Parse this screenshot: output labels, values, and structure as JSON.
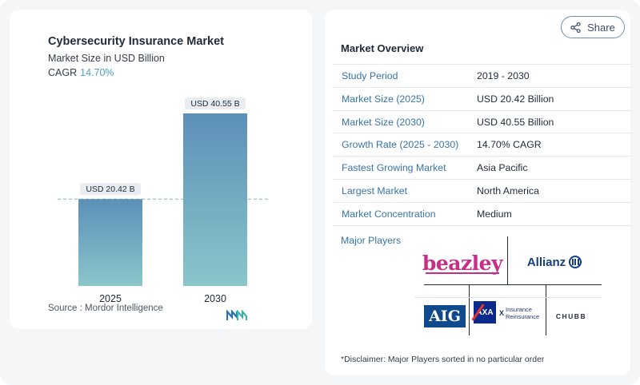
{
  "chart_data": {
    "type": "bar",
    "title": "Cybersecurity Insurance Market",
    "subtitle": "Market Size in USD Billion",
    "cagr_label": "CAGR",
    "cagr_value": "14.70%",
    "categories": [
      "2025",
      "2030"
    ],
    "values": [
      20.42,
      40.55
    ],
    "value_labels": [
      "USD 20.42 B",
      "USD 40.55 B"
    ],
    "ylim": [
      0,
      40.55
    ],
    "grid": false,
    "reference_line_at": 20.42,
    "bar_colors": [
      "#5d8fb7",
      "#8ac6cb"
    ],
    "source": "Source :  Mordor Intelligence"
  },
  "share": {
    "label": "Share"
  },
  "overview": {
    "title": "Market Overview",
    "rows": [
      {
        "key": "Study Period",
        "value": "2019 - 2030"
      },
      {
        "key": "Market Size (2025)",
        "value": "USD 20.42 Billion"
      },
      {
        "key": "Market Size (2030)",
        "value": "USD 40.55 Billion"
      },
      {
        "key": "Growth Rate (2025 - 2030)",
        "value": "14.70% CAGR"
      },
      {
        "key": "Fastest Growing Market",
        "value": "Asia Pacific"
      },
      {
        "key": "Largest Market",
        "value": "North America"
      },
      {
        "key": "Market Concentration",
        "value": "Medium"
      }
    ],
    "players_label": "Major Players",
    "players": {
      "beazley": "beazley",
      "allianz": "Allianz",
      "aig": "AIG",
      "axa": "AXA",
      "xl_line1": "Insurance",
      "xl_line2": "Reinsurance",
      "xl_mark": "X",
      "chubb": "CHUBB"
    },
    "disclaimer": "*Disclaimer: Major Players sorted in no particular order"
  },
  "colors": {
    "accent_text": "#3873a8",
    "cagr": "#4f9ec7"
  }
}
